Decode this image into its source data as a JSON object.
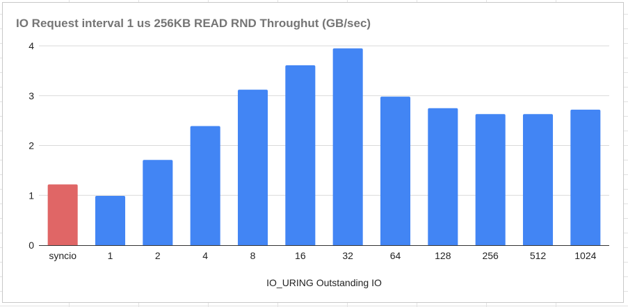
{
  "chart_data": {
    "type": "bar",
    "title": "IO Request interval 1 us 256KB READ RND Throughut (GB/sec)",
    "xlabel": "IO_URING Outstanding IO",
    "ylabel": "",
    "categories": [
      "syncio",
      "1",
      "2",
      "4",
      "8",
      "16",
      "32",
      "64",
      "128",
      "256",
      "512",
      "1024"
    ],
    "values": [
      1.22,
      0.99,
      1.71,
      2.39,
      3.12,
      3.61,
      3.95,
      2.98,
      2.75,
      2.63,
      2.63,
      2.72
    ],
    "bar_colors": [
      "#e06666",
      "#4285f4",
      "#4285f4",
      "#4285f4",
      "#4285f4",
      "#4285f4",
      "#4285f4",
      "#4285f4",
      "#4285f4",
      "#4285f4",
      "#4285f4",
      "#4285f4"
    ],
    "ylim": [
      0,
      4
    ],
    "yticks": [
      "0",
      "1",
      "2",
      "3",
      "4"
    ],
    "grid": true,
    "colors": {
      "highlight": "#e06666",
      "bars": "#4285f4",
      "grid": "#d9d9d9",
      "title": "#757575"
    }
  }
}
